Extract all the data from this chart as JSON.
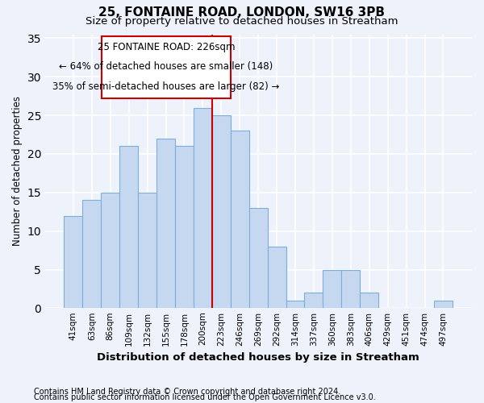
{
  "title": "25, FONTAINE ROAD, LONDON, SW16 3PB",
  "subtitle": "Size of property relative to detached houses in Streatham",
  "xlabel": "Distribution of detached houses by size in Streatham",
  "ylabel": "Number of detached properties",
  "bar_labels": [
    "41sqm",
    "63sqm",
    "86sqm",
    "109sqm",
    "132sqm",
    "155sqm",
    "178sqm",
    "200sqm",
    "223sqm",
    "246sqm",
    "269sqm",
    "292sqm",
    "314sqm",
    "337sqm",
    "360sqm",
    "383sqm",
    "406sqm",
    "429sqm",
    "451sqm",
    "474sqm",
    "497sqm"
  ],
  "bar_values": [
    12,
    14,
    15,
    21,
    15,
    22,
    21,
    26,
    25,
    23,
    13,
    8,
    1,
    2,
    5,
    5,
    2,
    0,
    0,
    0,
    1
  ],
  "bar_color": "#c5d8f0",
  "bar_edgecolor": "#7aaedc",
  "vline_color": "#cc0000",
  "annotation_title": "25 FONTAINE ROAD: 226sqm",
  "annotation_line1": "← 64% of detached houses are smaller (148)",
  "annotation_line2": "35% of semi-detached houses are larger (82) →",
  "box_edgecolor": "#cc0000",
  "ylim": [
    0,
    35
  ],
  "yticks": [
    0,
    5,
    10,
    15,
    20,
    25,
    30,
    35
  ],
  "footnote1": "Contains HM Land Registry data © Crown copyright and database right 2024.",
  "footnote2": "Contains public sector information licensed under the Open Government Licence v3.0.",
  "bg_color": "#eef2fa",
  "grid_color": "#ffffff"
}
